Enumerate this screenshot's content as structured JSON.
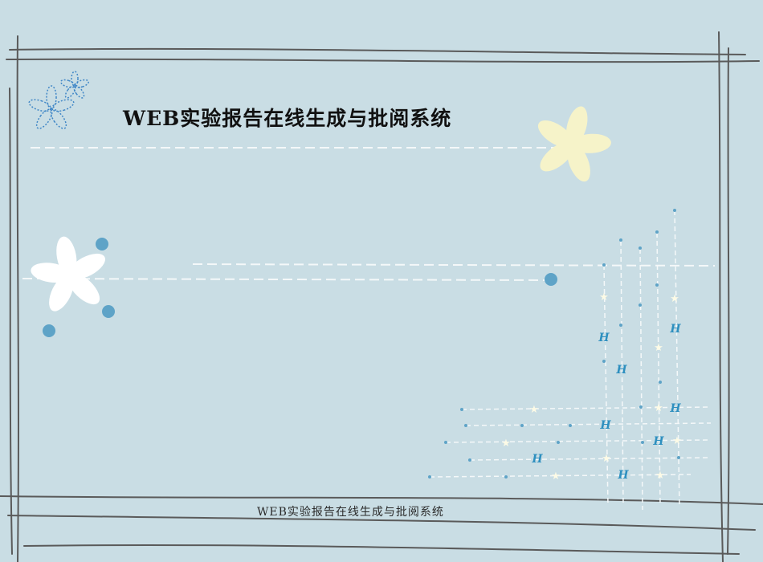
{
  "slide": {
    "title": "WEB实验报告在线生成与批阅系统",
    "footer": "WEB实验报告在线生成与批阅系统"
  },
  "decor": {
    "background_color": "#c9dde4",
    "frame_color": "#5a5a5a",
    "dash_color": "#f4f8f9",
    "dot_color": "#5ea3c7",
    "flower_white": "#ffffff",
    "flower_yellow": "#f6f3c9",
    "flower_blue_outline": "#3f86c6",
    "sparkle_glyph": "H"
  }
}
